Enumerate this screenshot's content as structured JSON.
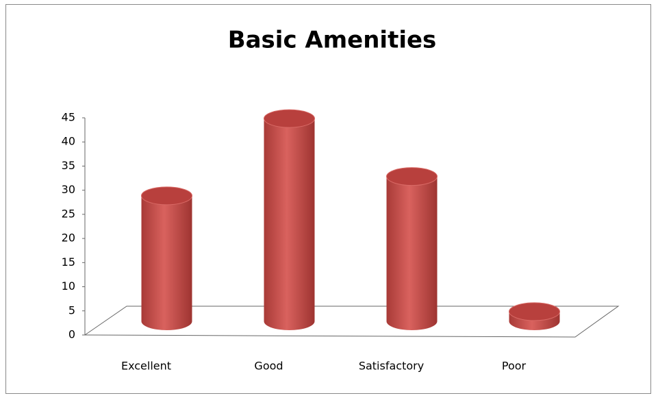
{
  "chart_data": {
    "type": "bar",
    "title": "Basic Amenities",
    "categories": [
      "Excellent",
      "Good",
      "Satisfactory",
      "Poor"
    ],
    "values": [
      26,
      42,
      30,
      2
    ],
    "color": "#c0504d",
    "ylim": [
      0,
      45
    ],
    "yticks": [
      0,
      5,
      10,
      15,
      20,
      25,
      30,
      35,
      40,
      45
    ],
    "grid": false
  }
}
